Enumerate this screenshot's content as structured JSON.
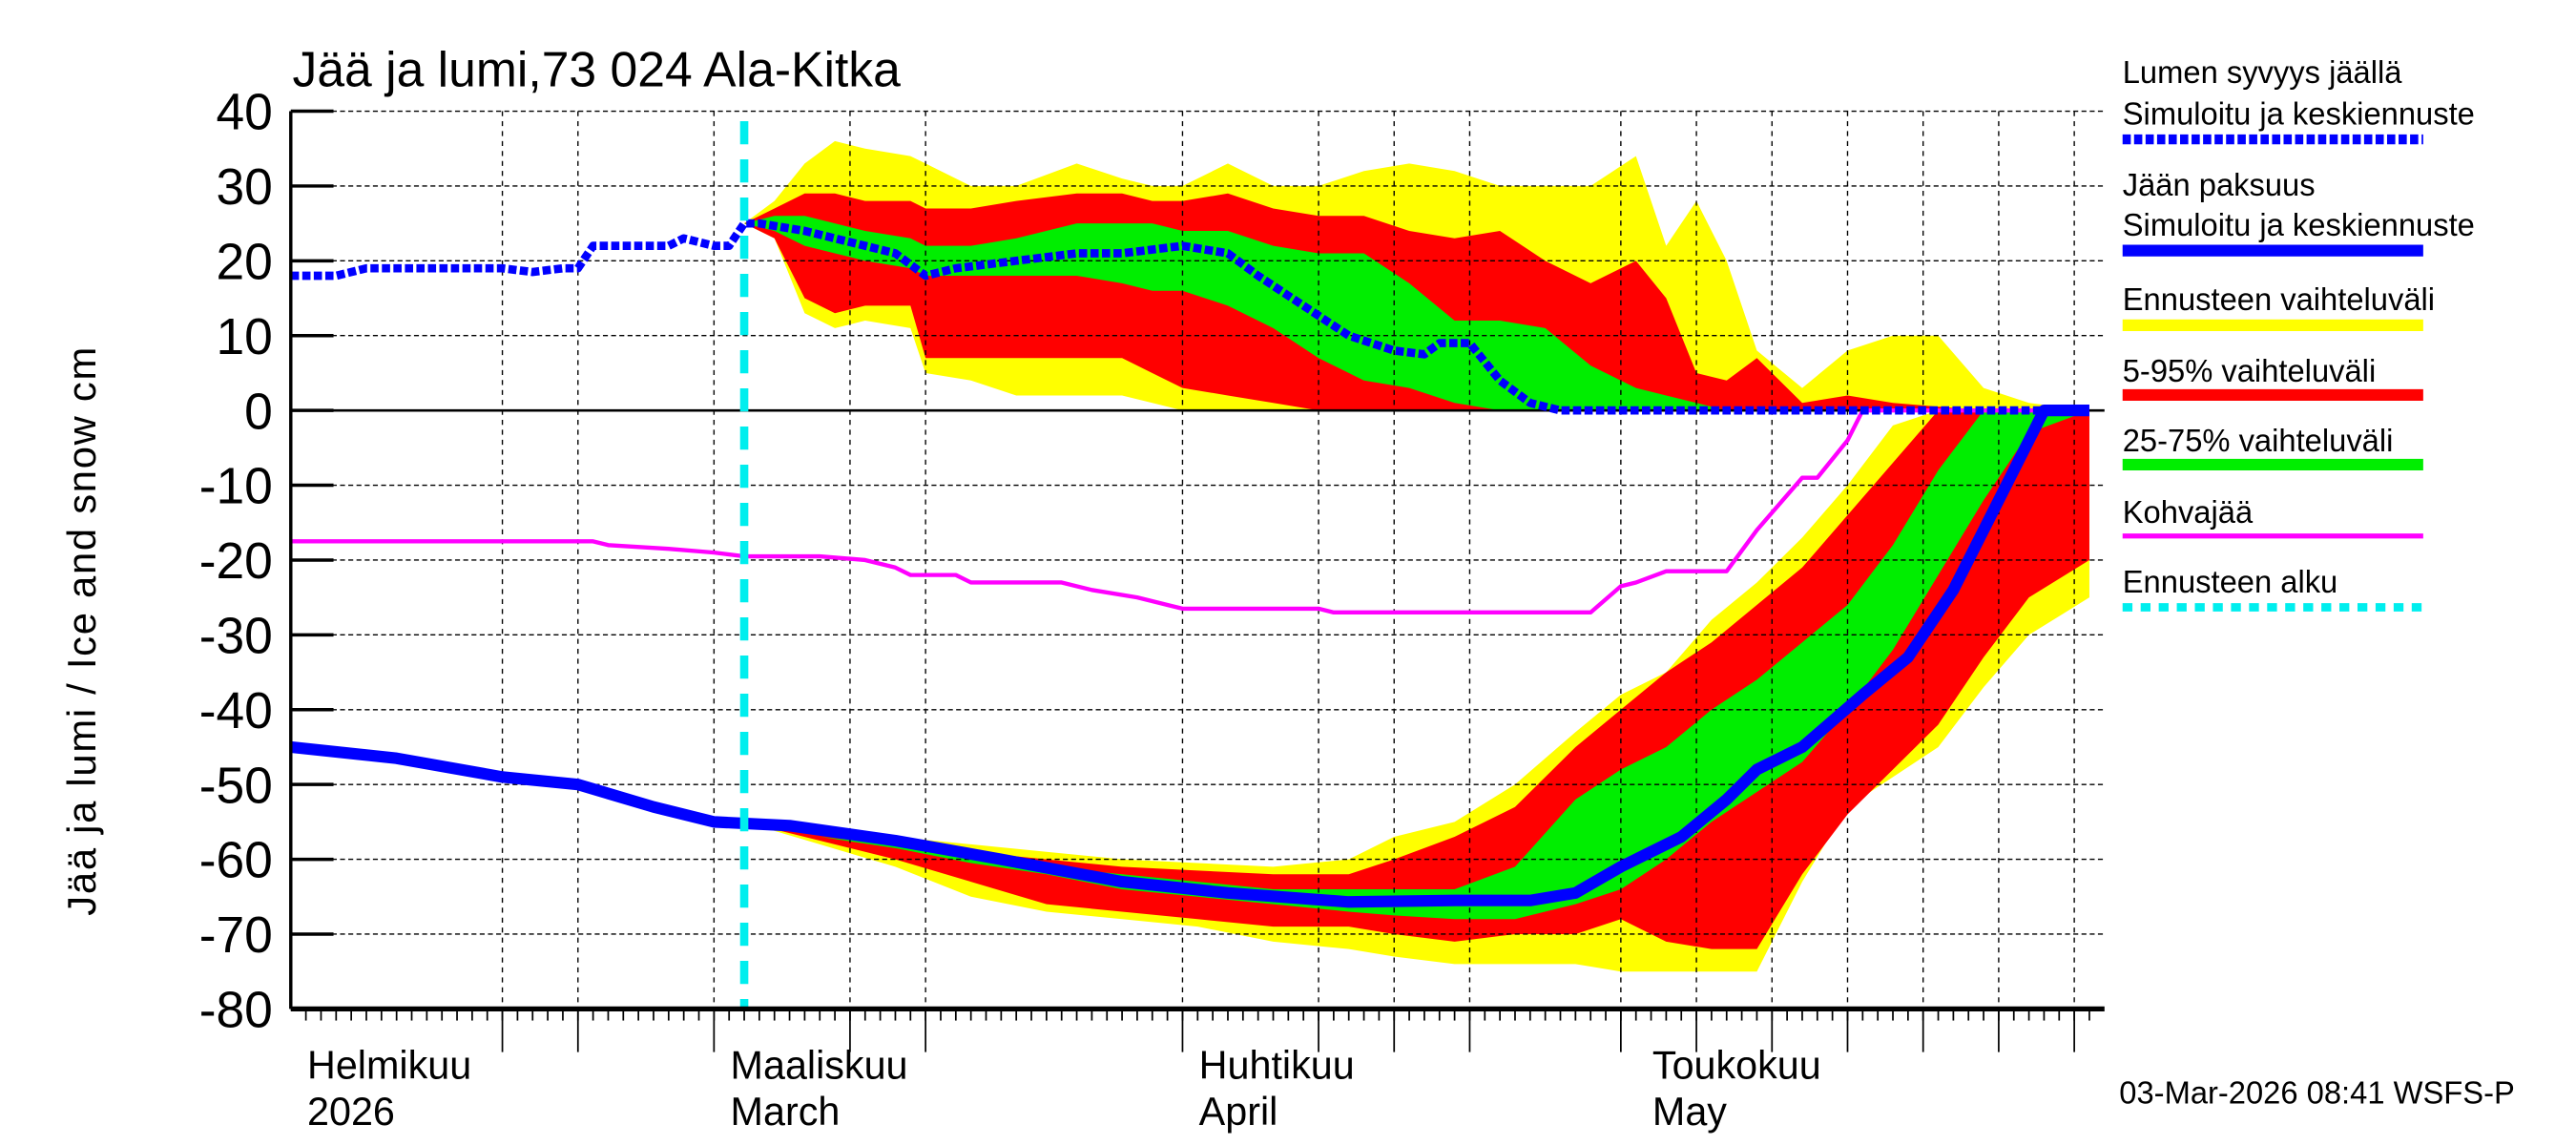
{
  "chart_data": {
    "type": "area",
    "title": "Jää ja lumi,73 024 Ala-Kitka",
    "ylabel": "Jää ja lumi / Ice and snow    cm",
    "ylim": [
      -80,
      40
    ],
    "yticks": [
      "40",
      "30",
      "20",
      "10",
      "0",
      "-10",
      "-20",
      "-30",
      "-40",
      "-50",
      "-60",
      "-70",
      "-80"
    ],
    "xlim": [
      "2026-02-01",
      "2026-06-01"
    ],
    "grid": true,
    "legend_position": "right",
    "months": [
      {
        "fi": "Helmikuu",
        "en": "2026",
        "date": "2026-02-01"
      },
      {
        "fi": "Maaliskuu",
        "en": "March",
        "date": "2026-03-01"
      },
      {
        "fi": "Huhtikuu",
        "en": "April",
        "date": "2026-04-01"
      },
      {
        "fi": "Toukokuu",
        "en": "May",
        "date": "2026-05-01"
      }
    ],
    "forecast_start": "2026-03-03",
    "colors": {
      "snow": "#0000ff",
      "ice": "#0000ff",
      "range": "#ffff00",
      "p5_95": "#ff0000",
      "p25_75": "#00ee00",
      "kohva": "#ff00ff",
      "forecast_start": "#00eeee"
    },
    "snow_bands": {
      "dates": [
        "2026-03-03",
        "2026-03-05",
        "2026-03-07",
        "2026-03-09",
        "2026-03-11",
        "2026-03-14",
        "2026-03-15",
        "2026-03-18",
        "2026-03-21",
        "2026-03-25",
        "2026-03-28",
        "2026-03-30",
        "2026-04-01",
        "2026-04-04",
        "2026-04-07",
        "2026-04-10",
        "2026-04-13",
        "2026-04-16",
        "2026-04-19",
        "2026-04-22",
        "2026-04-25",
        "2026-04-28",
        "2026-05-01",
        "2026-05-03",
        "2026-05-05",
        "2026-05-07",
        "2026-05-09",
        "2026-05-12",
        "2026-05-15",
        "2026-05-18",
        "2026-05-21",
        "2026-05-24",
        "2026-05-27",
        "2026-05-31"
      ],
      "range_max": [
        25,
        28,
        33,
        36,
        35,
        34,
        33,
        30,
        30,
        33,
        31,
        30,
        30,
        33,
        30,
        30,
        32,
        33,
        32,
        30,
        30,
        30,
        34,
        22,
        28,
        20,
        8,
        3,
        8,
        10,
        10,
        3,
        1,
        0
      ],
      "p95": [
        25,
        27,
        29,
        29,
        28,
        28,
        27,
        27,
        28,
        29,
        29,
        28,
        28,
        29,
        27,
        26,
        26,
        24,
        23,
        24,
        20,
        17,
        20,
        15,
        5,
        4,
        7,
        1,
        2,
        1,
        0.5,
        0,
        0,
        0
      ],
      "p75": [
        25,
        26,
        26,
        25,
        24,
        23,
        22,
        22,
        23,
        25,
        25,
        25,
        24,
        24,
        22,
        21,
        21,
        17,
        12,
        12,
        11,
        6,
        3,
        2,
        1,
        0,
        0,
        0,
        0,
        0,
        0,
        0,
        0,
        0
      ],
      "p25": [
        25,
        24,
        22,
        21,
        20,
        19,
        18,
        18,
        18,
        18,
        17,
        16,
        16,
        14,
        11,
        7,
        4,
        3,
        1,
        0,
        0,
        0,
        0,
        0,
        0,
        0,
        0,
        0,
        0,
        0,
        0,
        0,
        0,
        0
      ],
      "p5": [
        25,
        23,
        15,
        13,
        14,
        14,
        7,
        7,
        7,
        7,
        7,
        5,
        3,
        2,
        1,
        0,
        0,
        0,
        0,
        0,
        0,
        0,
        0,
        0,
        0,
        0,
        0,
        0,
        0,
        0,
        0,
        0,
        0,
        0
      ],
      "range_min": [
        25,
        23,
        13,
        11,
        12,
        11,
        5,
        4,
        2,
        2,
        2,
        1,
        0,
        0,
        0,
        0,
        0,
        0,
        0,
        0,
        0,
        0,
        0,
        0,
        0,
        0,
        0,
        0,
        0,
        0,
        0,
        0,
        0,
        0
      ]
    },
    "snow_mean": {
      "dates": [
        "2026-02-01",
        "2026-02-04",
        "2026-02-06",
        "2026-02-15",
        "2026-02-17",
        "2026-02-19",
        "2026-02-20",
        "2026-02-21",
        "2026-02-23",
        "2026-02-26",
        "2026-02-27",
        "2026-03-01",
        "2026-03-02",
        "2026-03-03",
        "2026-03-04",
        "2026-03-07",
        "2026-03-11",
        "2026-03-13",
        "2026-03-15",
        "2026-03-17",
        "2026-03-21",
        "2026-03-25",
        "2026-03-28",
        "2026-04-01",
        "2026-04-04",
        "2026-04-06",
        "2026-04-09",
        "2026-04-12",
        "2026-04-15",
        "2026-04-17",
        "2026-04-18",
        "2026-04-20",
        "2026-04-22",
        "2026-04-24",
        "2026-04-26",
        "2026-05-31"
      ],
      "values": [
        18,
        18,
        19,
        19,
        18.5,
        19,
        19,
        22,
        22,
        22,
        23,
        22,
        22,
        25,
        25,
        24,
        22,
        21,
        18,
        19,
        20,
        21,
        21,
        22,
        21,
        18,
        14,
        10,
        8,
        7.5,
        9,
        9,
        4,
        1,
        0,
        0
      ]
    },
    "ice_bands": {
      "dates": [
        "2026-03-03",
        "2026-03-08",
        "2026-03-13",
        "2026-03-18",
        "2026-03-23",
        "2026-03-28",
        "2026-04-02",
        "2026-04-07",
        "2026-04-12",
        "2026-04-15",
        "2026-04-19",
        "2026-04-23",
        "2026-04-27",
        "2026-04-30",
        "2026-05-03",
        "2026-05-06",
        "2026-05-09",
        "2026-05-12",
        "2026-05-15",
        "2026-05-18",
        "2026-05-21",
        "2026-05-24",
        "2026-05-27",
        "2026-05-31"
      ],
      "range_max": [
        -55,
        -56,
        -57,
        -58,
        -59,
        -60,
        -60.5,
        -61,
        -60,
        -57,
        -55,
        -50,
        -43,
        -38,
        -35,
        -28,
        -23,
        -17,
        -10,
        -2,
        0,
        0,
        0,
        0
      ],
      "p95": [
        -55,
        -56.5,
        -57.5,
        -59,
        -60,
        -61,
        -61.5,
        -62,
        -62,
        -60,
        -57,
        -53,
        -45,
        -40,
        -35,
        -31,
        -26,
        -21,
        -14,
        -7,
        0,
        0,
        0,
        0
      ],
      "p75": [
        -55,
        -57,
        -58,
        -59.5,
        -61,
        -62,
        -63,
        -64,
        -64,
        -64,
        -64,
        -61,
        -52,
        -48,
        -45,
        -40,
        -36,
        -31,
        -26,
        -18,
        -8,
        0,
        0,
        0
      ],
      "p25": [
        -55,
        -57,
        -58.5,
        -60.5,
        -62,
        -64,
        -65,
        -66,
        -67,
        -67.5,
        -68,
        -68,
        -66,
        -64,
        -60,
        -55,
        -51,
        -47,
        -40,
        -32,
        -22,
        -12,
        -3,
        0
      ],
      "p5": [
        -55,
        -57.5,
        -60,
        -63,
        -66,
        -67,
        -68,
        -69,
        -69,
        -70,
        -71,
        -70,
        -70,
        -68,
        -71,
        -72,
        -72,
        -62,
        -54,
        -48,
        -42,
        -33,
        -25,
        -20
      ],
      "range_min": [
        -55,
        -58,
        -61,
        -65,
        -67,
        -68,
        -69,
        -71,
        -72,
        -73,
        -74,
        -74,
        -74,
        -75,
        -75,
        -75,
        -75,
        -63,
        -53,
        -49,
        -45,
        -37,
        -30,
        -25
      ]
    },
    "ice_mean": {
      "dates": [
        "2026-02-01",
        "2026-02-08",
        "2026-02-15",
        "2026-02-20",
        "2026-02-25",
        "2026-03-01",
        "2026-03-06",
        "2026-03-13",
        "2026-03-20",
        "2026-03-28",
        "2026-04-04",
        "2026-04-12",
        "2026-04-19",
        "2026-04-24",
        "2026-04-27",
        "2026-04-30",
        "2026-05-04",
        "2026-05-07",
        "2026-05-09",
        "2026-05-12",
        "2026-05-16",
        "2026-05-19",
        "2026-05-22",
        "2026-05-24",
        "2026-05-26",
        "2026-05-28",
        "2026-05-31"
      ],
      "values": [
        -45,
        -46.5,
        -49,
        -50,
        -53,
        -55,
        -55.5,
        -57.5,
        -60,
        -63,
        -64.5,
        -65.7,
        -65.5,
        -65.5,
        -64.5,
        -61,
        -57,
        -52,
        -48,
        -45,
        -38,
        -33,
        -24,
        -16,
        -8,
        0,
        0
      ]
    },
    "kohva": {
      "dates": [
        "2026-02-01",
        "2026-02-21",
        "2026-02-22",
        "2026-02-26",
        "2026-03-01",
        "2026-03-03",
        "2026-03-08",
        "2026-03-11",
        "2026-03-13",
        "2026-03-14",
        "2026-03-17",
        "2026-03-18",
        "2026-03-24",
        "2026-03-26",
        "2026-03-29",
        "2026-03-31",
        "2026-04-01",
        "2026-04-10",
        "2026-04-11",
        "2026-04-28",
        "2026-04-30",
        "2026-05-01",
        "2026-05-03",
        "2026-05-07",
        "2026-05-09",
        "2026-05-12",
        "2026-05-13",
        "2026-05-15",
        "2026-05-16",
        "2026-05-31"
      ],
      "values": [
        -17.5,
        -17.5,
        -18,
        -18.5,
        -19,
        -19.5,
        -19.5,
        -20,
        -21,
        -22,
        -22,
        -23,
        -23,
        -24,
        -25,
        -26,
        -26.5,
        -26.5,
        -27,
        -27,
        -23.5,
        -23,
        -21.5,
        -21.5,
        -16,
        -9,
        -9,
        -4,
        0,
        0
      ]
    }
  },
  "legend": {
    "snow_title": "Lumen syvyys jäällä",
    "snow_sub": "Simuloitu ja keskiennuste",
    "ice_title": "Jään paksuus",
    "ice_sub": "Simuloitu ja keskiennuste",
    "range": "Ennusteen vaihteluväli",
    "p5_95": "5-95% vaihteluväli",
    "p25_75": "25-75% vaihteluväli",
    "kohva": "Kohvajää",
    "forecast_start": "Ennusteen alku"
  },
  "footer": "03-Mar-2026 08:41 WSFS-P"
}
